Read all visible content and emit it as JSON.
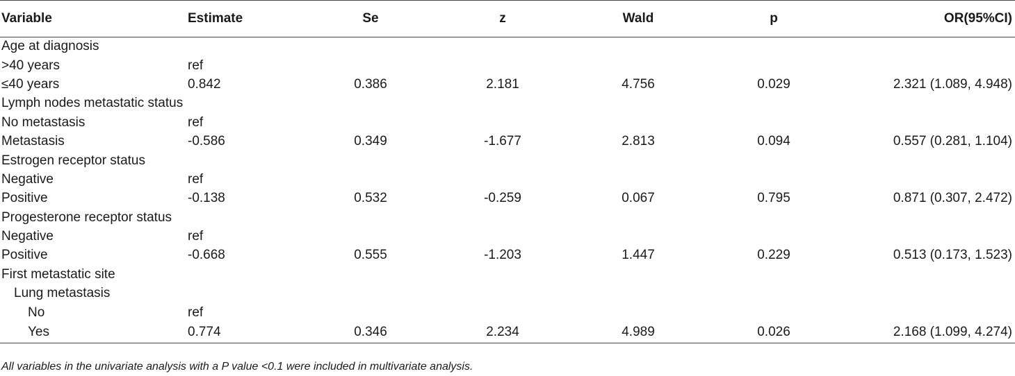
{
  "table": {
    "headers": {
      "variable": "Variable",
      "estimate": "Estimate",
      "se": "Se",
      "z": "z",
      "wald": "Wald",
      "p": "p",
      "or": "OR(95%CI)"
    },
    "rows": [
      {
        "variable": "Age at diagnosis",
        "estimate": "",
        "se": "",
        "z": "",
        "wald": "",
        "p": "",
        "or": ""
      },
      {
        "variable": ">40 years",
        "estimate": "ref",
        "se": "",
        "z": "",
        "wald": "",
        "p": "",
        "or": ""
      },
      {
        "variable": "≤40 years",
        "estimate": "0.842",
        "se": "0.386",
        "z": "2.181",
        "wald": "4.756",
        "p": "0.029",
        "or": "2.321 (1.089, 4.948)"
      },
      {
        "variable": "Lymph nodes metastatic status",
        "estimate": "",
        "se": "",
        "z": "",
        "wald": "",
        "p": "",
        "or": ""
      },
      {
        "variable": "No metastasis",
        "estimate": "ref",
        "se": "",
        "z": "",
        "wald": "",
        "p": "",
        "or": ""
      },
      {
        "variable": "Metastasis",
        "estimate": "-0.586",
        "se": "0.349",
        "z": "-1.677",
        "wald": "2.813",
        "p": "0.094",
        "or": "0.557 (0.281, 1.104)"
      },
      {
        "variable": "Estrogen receptor status",
        "estimate": "",
        "se": "",
        "z": "",
        "wald": "",
        "p": "",
        "or": ""
      },
      {
        "variable": "Negative",
        "estimate": "ref",
        "se": "",
        "z": "",
        "wald": "",
        "p": "",
        "or": ""
      },
      {
        "variable": "Positive",
        "estimate": "-0.138",
        "se": "0.532",
        "z": "-0.259",
        "wald": "0.067",
        "p": "0.795",
        "or": "0.871 (0.307, 2.472)"
      },
      {
        "variable": "Progesterone receptor status",
        "estimate": "",
        "se": "",
        "z": "",
        "wald": "",
        "p": "",
        "or": ""
      },
      {
        "variable": "Negative",
        "estimate": "ref",
        "se": "",
        "z": "",
        "wald": "",
        "p": "",
        "or": ""
      },
      {
        "variable": "Positive",
        "estimate": "-0.668",
        "se": "0.555",
        "z": "-1.203",
        "wald": "1.447",
        "p": "0.229",
        "or": "0.513 (0.173, 1.523)"
      },
      {
        "variable": "First metastatic site",
        "estimate": "",
        "se": "",
        "z": "",
        "wald": "",
        "p": "",
        "or": ""
      },
      {
        "variable": "Lung metastasis",
        "estimate": "",
        "se": "",
        "z": "",
        "wald": "",
        "p": "",
        "or": ""
      },
      {
        "variable": "No",
        "estimate": "ref",
        "se": "",
        "z": "",
        "wald": "",
        "p": "",
        "or": ""
      },
      {
        "variable": "Yes",
        "estimate": "0.774",
        "se": "0.346",
        "z": "2.234",
        "wald": "4.989",
        "p": "0.026",
        "or": "2.168 (1.099, 4.274)"
      }
    ]
  },
  "footnote": "All variables in the univariate analysis with a P value <0.1 were included in multivariate analysis."
}
